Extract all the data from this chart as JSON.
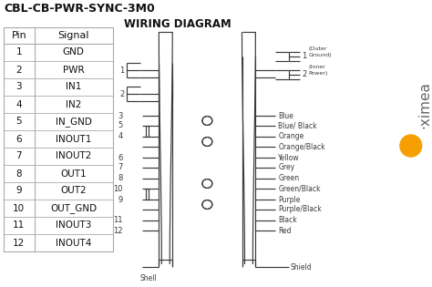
{
  "title": "CBL-CB-PWR-SYNC-3M0",
  "table_headers": [
    "Pin",
    "Signal"
  ],
  "table_rows": [
    [
      "1",
      "GND"
    ],
    [
      "2",
      "PWR"
    ],
    [
      "3",
      "IN1"
    ],
    [
      "4",
      "IN2"
    ],
    [
      "5",
      "IN_GND"
    ],
    [
      "6",
      "INOUT1"
    ],
    [
      "7",
      "INOUT2"
    ],
    [
      "8",
      "OUT1"
    ],
    [
      "9",
      "OUT2"
    ],
    [
      "10",
      "OUT_GND"
    ],
    [
      "11",
      "INOUT3"
    ],
    [
      "12",
      "INOUT4"
    ]
  ],
  "wiring_title": "WIRING DIAGRAM",
  "bg_color": "#ffffff",
  "line_color": "#3a3a3a",
  "table_border_color": "#aaaaaa",
  "orange_dot_color": "#f5a000",
  "ximea_color": "#666666",
  "right_wire_labels": [
    "Blue",
    "Blue/ Black",
    "Orange",
    "Orange/Black",
    "Yellow",
    "Grey",
    "Green",
    "Green/Black",
    "Purple",
    "Purple/Black",
    "Black",
    "Red"
  ]
}
